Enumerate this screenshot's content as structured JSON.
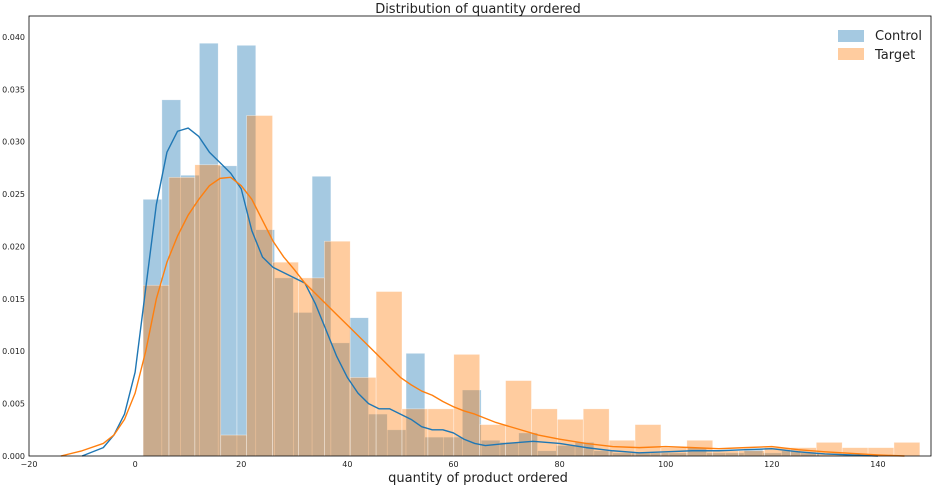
{
  "chart_data": {
    "type": "histogram",
    "title": "Distribution of quantity ordered",
    "xlabel": "quantity of product ordered",
    "ylabel": "",
    "xlim": [
      -20,
      150
    ],
    "ylim": [
      0,
      0.042
    ],
    "x_ticks": [
      -20,
      0,
      20,
      40,
      60,
      80,
      100,
      120,
      140
    ],
    "y_ticks": [
      0.0,
      0.005,
      0.01,
      0.015,
      0.02,
      0.025,
      0.03,
      0.035,
      0.04
    ],
    "x_tick_labels": [
      "−20",
      "0",
      "20",
      "40",
      "60",
      "80",
      "100",
      "120",
      "140"
    ],
    "y_tick_labels": [
      "0.000",
      "0.005",
      "0.010",
      "0.015",
      "0.020",
      "0.025",
      "0.030",
      "0.035",
      "0.040"
    ],
    "grid": false,
    "legend_position": "top-right",
    "series": [
      {
        "name": "Control",
        "color": "#1f77b4",
        "bin_start": 1.5,
        "bin_width": 3.54,
        "heights": [
          0.0245,
          0.034,
          0.0268,
          0.0394,
          0.0277,
          0.0392,
          0.0216,
          0.017,
          0.0137,
          0.0267,
          0.0108,
          0.0132,
          0.004,
          0.0025,
          0.0098,
          0.0018,
          0.0018,
          0.0063,
          0.0015,
          0.0013,
          0.0022,
          0.0005,
          0.001,
          0.0013,
          0.0005,
          0.0003,
          0.0003,
          0.0003,
          0.0003,
          0.0008,
          0.0003,
          0.0003,
          0.0007,
          0.0003,
          0.0005,
          0.0003
        ],
        "kde_x": [
          -10,
          -6,
          -4,
          -2,
          0,
          2,
          4,
          6,
          8,
          10,
          12,
          14,
          16,
          18,
          20,
          22,
          24,
          26,
          28,
          30,
          32,
          34,
          36,
          38,
          40,
          42,
          44,
          46,
          48,
          50,
          52,
          54,
          56,
          58,
          60,
          62,
          64,
          66,
          70,
          75,
          80,
          85,
          90,
          95,
          100,
          105,
          110,
          115,
          120,
          125,
          130,
          140
        ],
        "kde_y": [
          0.0,
          0.0008,
          0.002,
          0.004,
          0.008,
          0.016,
          0.024,
          0.029,
          0.031,
          0.0313,
          0.0305,
          0.029,
          0.028,
          0.027,
          0.0255,
          0.0215,
          0.019,
          0.018,
          0.0175,
          0.017,
          0.0165,
          0.0145,
          0.012,
          0.0095,
          0.0075,
          0.006,
          0.005,
          0.0045,
          0.0045,
          0.004,
          0.0035,
          0.0028,
          0.0025,
          0.0025,
          0.0022,
          0.0016,
          0.0012,
          0.001,
          0.0012,
          0.0014,
          0.0012,
          0.0008,
          0.0005,
          0.0003,
          0.0004,
          0.0005,
          0.0005,
          0.0006,
          0.0007,
          0.0004,
          0.0002,
          0.0
        ]
      },
      {
        "name": "Target",
        "color": "#ff7f0e",
        "bin_start": 1.5,
        "bin_width": 4.88,
        "heights": [
          0.0163,
          0.0266,
          0.0278,
          0.002,
          0.0325,
          0.0185,
          0.017,
          0.0205,
          0.0075,
          0.0157,
          0.0045,
          0.0045,
          0.0097,
          0.003,
          0.0072,
          0.0045,
          0.0035,
          0.0045,
          0.0015,
          0.003,
          0.0008,
          0.0015,
          0.0005,
          0.0005,
          0.0008,
          0.0008,
          0.0013,
          0.0008,
          0.0008,
          0.0013
        ],
        "kde_x": [
          -14,
          -10,
          -6,
          -4,
          -2,
          0,
          2,
          4,
          6,
          8,
          10,
          12,
          14,
          16,
          18,
          20,
          22,
          24,
          26,
          28,
          30,
          32,
          34,
          36,
          38,
          40,
          42,
          44,
          46,
          48,
          50,
          52,
          54,
          56,
          58,
          60,
          62,
          64,
          68,
          72,
          76,
          80,
          85,
          90,
          95,
          100,
          105,
          110,
          115,
          120,
          125,
          130,
          140,
          145
        ],
        "kde_y": [
          0.0,
          0.0005,
          0.0012,
          0.002,
          0.0035,
          0.006,
          0.01,
          0.015,
          0.0185,
          0.021,
          0.023,
          0.0245,
          0.0258,
          0.0265,
          0.0266,
          0.0258,
          0.0245,
          0.0225,
          0.0205,
          0.019,
          0.0178,
          0.0165,
          0.0155,
          0.0145,
          0.0135,
          0.0125,
          0.0115,
          0.0105,
          0.0095,
          0.0085,
          0.0075,
          0.0068,
          0.0062,
          0.0058,
          0.0052,
          0.0047,
          0.0043,
          0.004,
          0.0032,
          0.0026,
          0.002,
          0.0016,
          0.0012,
          0.0009,
          0.0008,
          0.0009,
          0.0008,
          0.0007,
          0.0008,
          0.0009,
          0.0006,
          0.0004,
          0.0001,
          0.0
        ]
      }
    ]
  }
}
